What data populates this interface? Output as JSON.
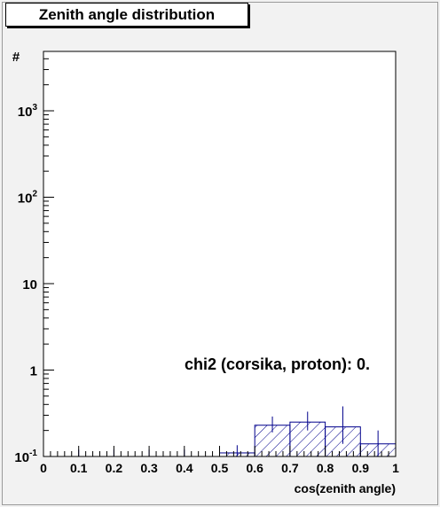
{
  "title": "Zenith angle distribution",
  "chart_data": {
    "type": "histogram",
    "title": "Zenith angle distribution",
    "xlabel": "cos(zenith angle)",
    "ylabel": "#",
    "xlim": [
      0,
      1
    ],
    "ylim": [
      0.1,
      5000
    ],
    "yscale": "log",
    "x_ticks": [
      "0",
      "0.1",
      "0.2",
      "0.3",
      "0.4",
      "0.5",
      "0.6",
      "0.7",
      "0.8",
      "0.9",
      "1"
    ],
    "y_ticks": [
      {
        "value": 0.1,
        "base": "10",
        "exp": "-1"
      },
      {
        "value": 1,
        "base": "1",
        "exp": ""
      },
      {
        "value": 10,
        "base": "10",
        "exp": ""
      },
      {
        "value": 100,
        "base": "10",
        "exp": "2"
      },
      {
        "value": 1000,
        "base": "10",
        "exp": "3"
      }
    ],
    "bins": [
      {
        "x0": 0.5,
        "x1": 0.6,
        "value": 0.11
      },
      {
        "x0": 0.6,
        "x1": 0.7,
        "value": 0.23
      },
      {
        "x0": 0.7,
        "x1": 0.8,
        "value": 0.25
      },
      {
        "x0": 0.8,
        "x1": 0.9,
        "value": 0.22
      },
      {
        "x0": 0.9,
        "x1": 1.0,
        "value": 0.14
      }
    ],
    "error_bars": [
      {
        "x": 0.0,
        "value": 0.1,
        "lo": 0.1,
        "hi": 0.12
      },
      {
        "x": 0.1,
        "value": 0.1,
        "lo": 0.1,
        "hi": 0.12
      },
      {
        "x": 0.2,
        "value": 0.1,
        "lo": 0.1,
        "hi": 0.12
      },
      {
        "x": 0.3,
        "value": 0.1,
        "lo": 0.1,
        "hi": 0.12
      },
      {
        "x": 0.4,
        "value": 0.1,
        "lo": 0.1,
        "hi": 0.12
      },
      {
        "x": 0.55,
        "value": 0.115,
        "lo": 0.1,
        "hi": 0.135
      },
      {
        "x": 0.65,
        "value": 0.24,
        "lo": 0.19,
        "hi": 0.29
      },
      {
        "x": 0.75,
        "value": 0.25,
        "lo": 0.2,
        "hi": 0.33
      },
      {
        "x": 0.85,
        "value": 0.22,
        "lo": 0.14,
        "hi": 0.38
      },
      {
        "x": 0.95,
        "value": 0.14,
        "lo": 0.1,
        "hi": 0.2
      }
    ],
    "annotation": "chi2 (corsika, proton): 0.",
    "colors": {
      "data_line": "#00008b",
      "frame": "#000000",
      "background": "#ffffff"
    }
  }
}
